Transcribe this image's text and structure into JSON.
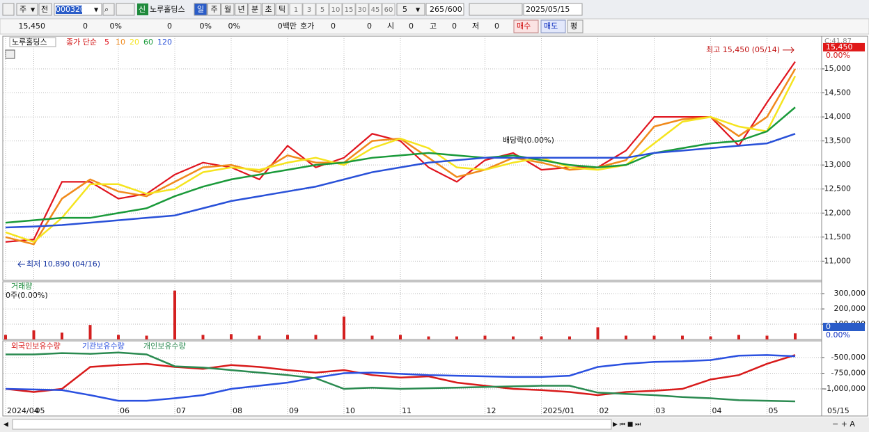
{
  "toolbar": {
    "market": "주",
    "prev": "전",
    "code": "000320",
    "new_badge": "신",
    "name": "노루홀딩스",
    "periods": [
      "일",
      "주",
      "월",
      "년",
      "분",
      "초",
      "틱"
    ],
    "intervals": [
      "1",
      "3",
      "5",
      "10",
      "15",
      "30",
      "45",
      "60"
    ],
    "interval_value": "5",
    "count": "265",
    "count_max": "/600",
    "date": "2025/05/15"
  },
  "quote_bar": {
    "price": "15,450",
    "change": "0",
    "change_rate": "0%",
    "volume": "0",
    "volume_rate": "0%",
    "turnover_rate": "0%",
    "amount": "0백만",
    "ask_label": "호가",
    "ask": "0",
    "bid": "0",
    "open_label": "시",
    "open": "0",
    "high_label": "고",
    "high": "0",
    "low_label": "저",
    "low": "0",
    "buy": "매수",
    "sell": "매도",
    "avg": "평"
  },
  "chart_data": [
    {
      "type": "line",
      "name": "노루홀딩스",
      "legend_title": "종가 단순",
      "categories": [
        "2024/04",
        "05",
        null,
        null,
        "06",
        null,
        "07",
        null,
        "08",
        null,
        "09",
        null,
        "10",
        null,
        "11",
        null,
        null,
        "12",
        null,
        "2025/01",
        null,
        "02",
        null,
        "03",
        null,
        "04",
        null,
        "05",
        null
      ],
      "series": [
        {
          "name": "5",
          "color": "#e0141e",
          "values": [
            11400,
            11450,
            12650,
            12650,
            12300,
            12400,
            12800,
            13050,
            12950,
            12700,
            13400,
            12950,
            13150,
            13650,
            13500,
            12950,
            12650,
            13100,
            13250,
            12900,
            12950,
            12950,
            13300,
            14000,
            14000,
            14000,
            13400,
            14300,
            15150
          ]
        },
        {
          "name": "10",
          "color": "#f08a1c",
          "values": [
            11500,
            11350,
            12300,
            12700,
            12450,
            12350,
            12650,
            12950,
            13000,
            12850,
            13200,
            13050,
            13050,
            13500,
            13550,
            13150,
            12750,
            12900,
            13150,
            13050,
            12900,
            12950,
            13100,
            13800,
            13950,
            14000,
            13600,
            14000,
            15000
          ]
        },
        {
          "name": "20",
          "color": "#f5e41e",
          "values": [
            11600,
            11400,
            11900,
            12600,
            12600,
            12400,
            12500,
            12850,
            12950,
            12900,
            13050,
            13150,
            13000,
            13350,
            13550,
            13350,
            12950,
            12900,
            13050,
            13150,
            12950,
            12900,
            13000,
            13450,
            13900,
            14000,
            13800,
            13700,
            14850
          ]
        },
        {
          "name": "60",
          "color": "#1a9a3a",
          "values": [
            11800,
            11850,
            11900,
            11900,
            12000,
            12100,
            12350,
            12550,
            12700,
            12800,
            12900,
            13000,
            13050,
            13150,
            13200,
            13250,
            13200,
            13150,
            13200,
            13100,
            13000,
            12950,
            13000,
            13250,
            13350,
            13450,
            13500,
            13700,
            14200
          ]
        },
        {
          "name": "120",
          "color": "#2850d8",
          "values": [
            11700,
            11720,
            11750,
            11800,
            11850,
            11900,
            11950,
            12100,
            12250,
            12350,
            12450,
            12550,
            12700,
            12850,
            12950,
            13050,
            13100,
            13150,
            13150,
            13150,
            13150,
            13150,
            13150,
            13250,
            13300,
            13350,
            13400,
            13450,
            13650
          ]
        }
      ],
      "ylim": [
        10600,
        15680
      ],
      "yticks": [
        {
          "value": 11000,
          "label": "11,000"
        },
        {
          "value": 11500,
          "label": "11,500"
        },
        {
          "value": 12000,
          "label": "12,000"
        },
        {
          "value": 12500,
          "label": "12,500"
        },
        {
          "value": 13000,
          "label": "13,000"
        },
        {
          "value": 13500,
          "label": "13,500"
        },
        {
          "value": 14000,
          "label": "14,000"
        },
        {
          "value": 14500,
          "label": "14,500"
        },
        {
          "value": 15000,
          "label": "15,000"
        }
      ],
      "grid": true,
      "corner_label": "C:41.87",
      "current": {
        "value": 15450,
        "label": "15,450"
      },
      "current_change": "0.00%",
      "annotations": [
        {
          "text": "최고 15,450 (05/14)",
          "value": 15450
        },
        {
          "text": "최저 10,890 (04/16)",
          "value": 10890
        },
        {
          "text": "배당락(0.00%)"
        }
      ],
      "last_date_label": "05/15"
    },
    {
      "type": "bar",
      "title": "거래량",
      "subtitle": "0주(0.00%)",
      "color": "#d42020",
      "values": [
        30000,
        60000,
        45000,
        95000,
        30000,
        25000,
        320000,
        30000,
        35000,
        25000,
        30000,
        30000,
        150000,
        25000,
        30000,
        20000,
        20000,
        25000,
        20000,
        20000,
        20000,
        80000,
        25000,
        25000,
        25000,
        20000,
        30000,
        25000,
        40000
      ],
      "ylim": [
        0,
        378000
      ],
      "yticks": [
        {
          "value": 100000,
          "label": "100,000"
        },
        {
          "value": 200000,
          "label": "200,000"
        },
        {
          "value": 300000,
          "label": "300,000"
        }
      ],
      "grid": true,
      "current": 0,
      "current_change": "0.00%"
    },
    {
      "type": "line",
      "series": [
        {
          "name": "외국인보유수량",
          "color": "#d81a1a",
          "values": [
            -1000000,
            -1050000,
            -1000000,
            -650000,
            -620000,
            -600000,
            -650000,
            -680000,
            -620000,
            -650000,
            -700000,
            -740000,
            -700000,
            -780000,
            -820000,
            -800000,
            -900000,
            -950000,
            -1000000,
            -1020000,
            -1050000,
            -1100000,
            -1050000,
            -1030000,
            -1000000,
            -850000,
            -780000,
            -600000,
            -460000
          ]
        },
        {
          "name": "기관보유수량",
          "color": "#2a50e0",
          "values": [
            -1000000,
            -1010000,
            -1020000,
            -1100000,
            -1190000,
            -1190000,
            -1150000,
            -1100000,
            -1000000,
            -950000,
            -900000,
            -820000,
            -750000,
            -740000,
            -760000,
            -780000,
            -790000,
            -800000,
            -810000,
            -810000,
            -790000,
            -650000,
            -600000,
            -570000,
            -560000,
            -540000,
            -470000,
            -460000,
            -480000
          ]
        },
        {
          "name": "개인보유수량",
          "color": "#2a8a50",
          "values": [
            -450000,
            -450000,
            -430000,
            -440000,
            -420000,
            -450000,
            -640000,
            -660000,
            -700000,
            -740000,
            -780000,
            -830000,
            -1000000,
            -980000,
            -1000000,
            -990000,
            -980000,
            -970000,
            -960000,
            -950000,
            -950000,
            -1060000,
            -1080000,
            -1100000,
            -1130000,
            -1150000,
            -1180000,
            -1190000,
            -1200000
          ]
        }
      ],
      "ylim": [
        -1433000,
        -256000
      ],
      "yticks": [
        {
          "value": -1000000,
          "label": "-1,000,000"
        },
        {
          "value": -750000,
          "label": "-750,000"
        },
        {
          "value": -500000,
          "label": "-500,000"
        }
      ],
      "grid": true
    }
  ]
}
